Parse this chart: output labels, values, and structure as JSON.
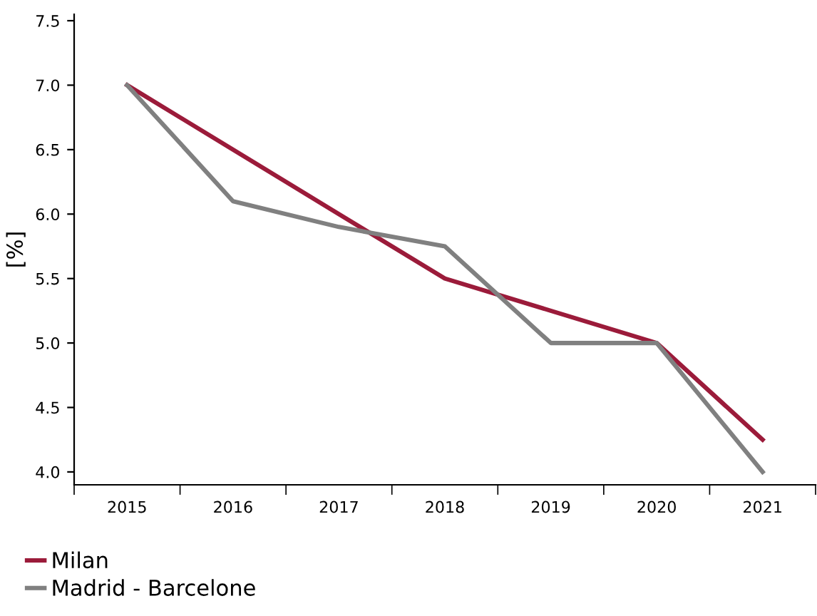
{
  "chart_data": {
    "type": "line",
    "ylabel": "[%]",
    "categories": [
      "2015",
      "2016",
      "2017",
      "2018",
      "2019",
      "2020",
      "2021"
    ],
    "series": [
      {
        "name": "Milan",
        "color": "#9b1b3a",
        "values": [
          7.0,
          6.5,
          6.0,
          5.5,
          5.25,
          5.0,
          4.25
        ]
      },
      {
        "name": "Madrid - Barcelone",
        "color": "#808080",
        "values": [
          7.0,
          6.1,
          5.9,
          5.75,
          5.0,
          5.0,
          4.0
        ]
      }
    ],
    "ylim": [
      3.9,
      7.55
    ],
    "yticks": [
      {
        "value": 4.0,
        "label": "4.0"
      },
      {
        "value": 4.5,
        "label": "4.5"
      },
      {
        "value": 5.0,
        "label": "5.0"
      },
      {
        "value": 5.5,
        "label": "5.5"
      },
      {
        "value": 6.0,
        "label": "6.0"
      },
      {
        "value": 6.5,
        "label": "6.5"
      },
      {
        "value": 7.0,
        "label": "7.0"
      },
      {
        "value": 7.5,
        "label": "7.5"
      }
    ],
    "grid": false,
    "legend": "bottom left",
    "marker": "none",
    "line_style": "solid"
  }
}
